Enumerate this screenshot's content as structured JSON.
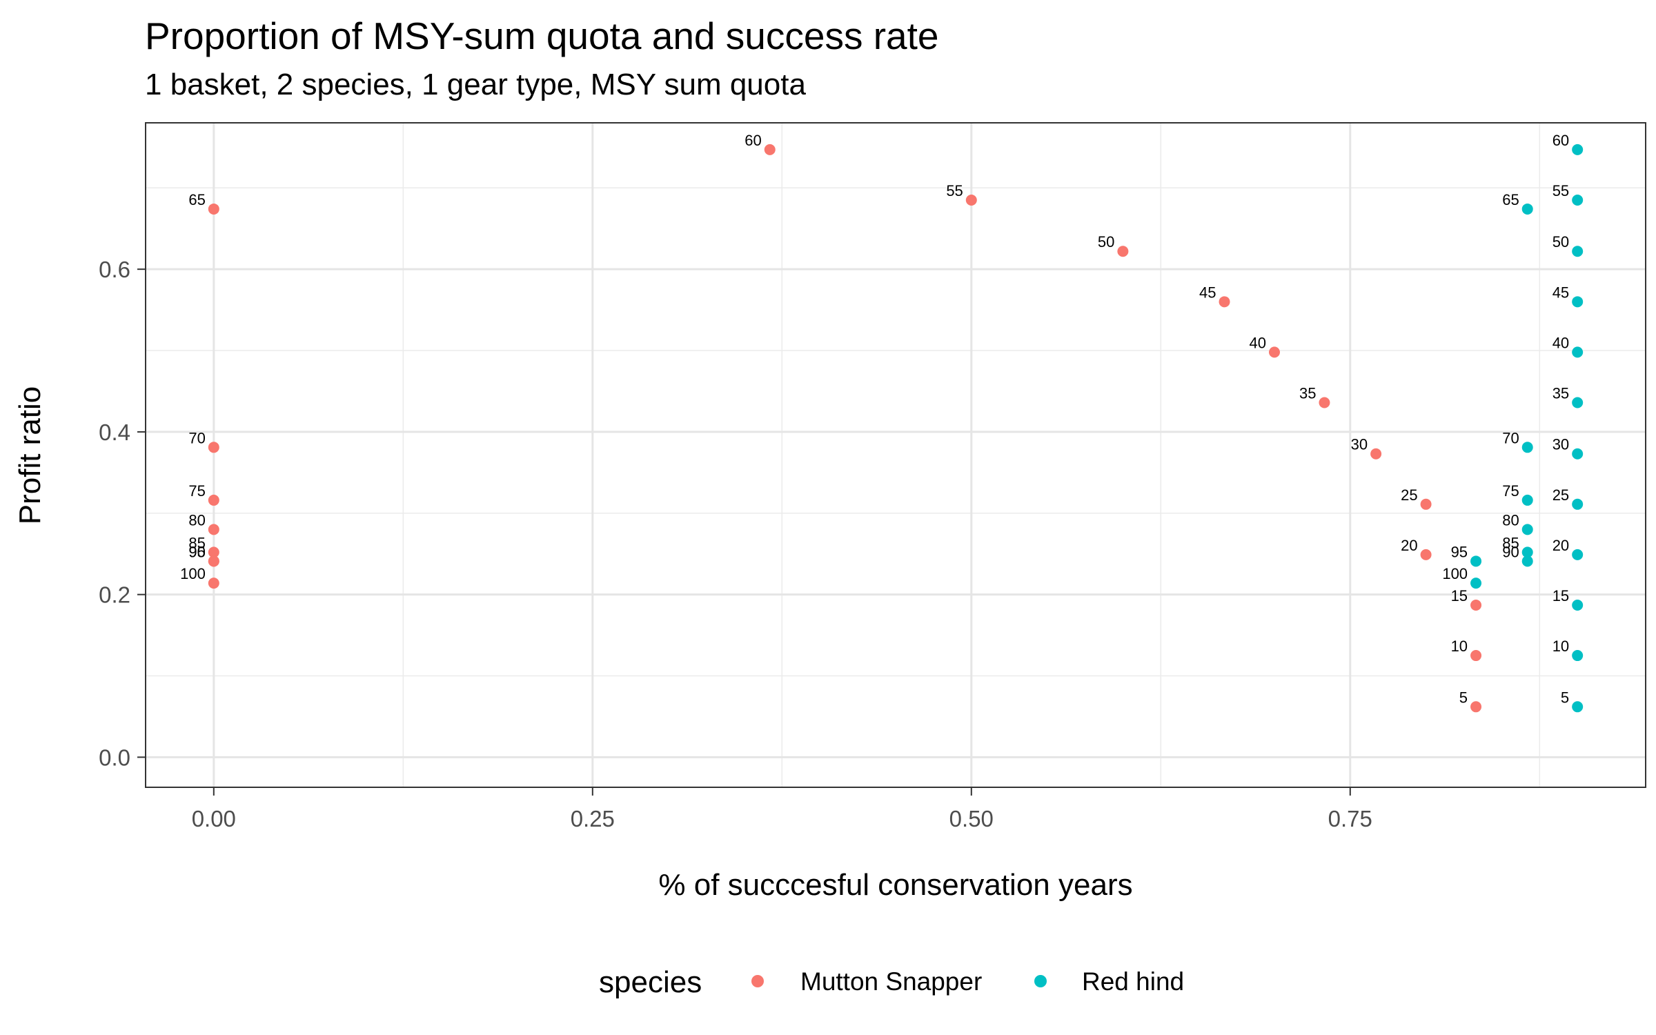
{
  "chart_data": {
    "type": "scatter",
    "title": "Proportion of MSY-sum quota and success rate",
    "subtitle": "1 basket, 2 species, 1 gear type, MSY sum quota",
    "xlabel": "% of succcesful conservation years",
    "ylabel": "Profit ratio",
    "xlim": [
      -0.045,
      0.945
    ],
    "ylim": [
      -0.037,
      0.78
    ],
    "x_ticks": [
      0.0,
      0.25,
      0.5,
      0.75
    ],
    "x_tick_labels": [
      "0.00",
      "0.25",
      "0.50",
      "0.75"
    ],
    "y_ticks": [
      0.0,
      0.2,
      0.4,
      0.6
    ],
    "y_tick_labels": [
      "0.0",
      "0.2",
      "0.4",
      "0.6"
    ],
    "grid": true,
    "legend": {
      "title": "species",
      "position": "bottom"
    },
    "series": [
      {
        "name": "Mutton Snapper",
        "color": "#F8766D",
        "points": [
          {
            "label": "5",
            "x": 0.833,
            "y": 0.062
          },
          {
            "label": "10",
            "x": 0.833,
            "y": 0.125
          },
          {
            "label": "15",
            "x": 0.833,
            "y": 0.187
          },
          {
            "label": "20",
            "x": 0.8,
            "y": 0.249
          },
          {
            "label": "25",
            "x": 0.8,
            "y": 0.311
          },
          {
            "label": "30",
            "x": 0.767,
            "y": 0.373
          },
          {
            "label": "35",
            "x": 0.733,
            "y": 0.436
          },
          {
            "label": "40",
            "x": 0.7,
            "y": 0.498
          },
          {
            "label": "45",
            "x": 0.667,
            "y": 0.56
          },
          {
            "label": "50",
            "x": 0.6,
            "y": 0.622
          },
          {
            "label": "55",
            "x": 0.5,
            "y": 0.685
          },
          {
            "label": "60",
            "x": 0.367,
            "y": 0.747
          },
          {
            "label": "65",
            "x": 0.0,
            "y": 0.674
          },
          {
            "label": "70",
            "x": 0.0,
            "y": 0.381
          },
          {
            "label": "75",
            "x": 0.0,
            "y": 0.316
          },
          {
            "label": "80",
            "x": 0.0,
            "y": 0.28
          },
          {
            "label": "85",
            "x": 0.0,
            "y": 0.252
          },
          {
            "label": "90",
            "x": 0.0,
            "y": 0.241
          },
          {
            "label": "95",
            "x": 0.0,
            "y": 0.241
          },
          {
            "label": "100",
            "x": 0.0,
            "y": 0.214
          }
        ]
      },
      {
        "name": "Red hind",
        "color": "#00BFC4",
        "points": [
          {
            "label": "5",
            "x": 0.9,
            "y": 0.062
          },
          {
            "label": "10",
            "x": 0.9,
            "y": 0.125
          },
          {
            "label": "15",
            "x": 0.9,
            "y": 0.187
          },
          {
            "label": "20",
            "x": 0.9,
            "y": 0.249
          },
          {
            "label": "25",
            "x": 0.9,
            "y": 0.311
          },
          {
            "label": "30",
            "x": 0.9,
            "y": 0.373
          },
          {
            "label": "35",
            "x": 0.9,
            "y": 0.436
          },
          {
            "label": "40",
            "x": 0.9,
            "y": 0.498
          },
          {
            "label": "45",
            "x": 0.9,
            "y": 0.56
          },
          {
            "label": "50",
            "x": 0.9,
            "y": 0.622
          },
          {
            "label": "55",
            "x": 0.9,
            "y": 0.685
          },
          {
            "label": "60",
            "x": 0.9,
            "y": 0.747
          },
          {
            "label": "65",
            "x": 0.867,
            "y": 0.674
          },
          {
            "label": "70",
            "x": 0.867,
            "y": 0.381
          },
          {
            "label": "75",
            "x": 0.867,
            "y": 0.316
          },
          {
            "label": "80",
            "x": 0.867,
            "y": 0.28
          },
          {
            "label": "85",
            "x": 0.867,
            "y": 0.252
          },
          {
            "label": "90",
            "x": 0.867,
            "y": 0.241
          },
          {
            "label": "95",
            "x": 0.833,
            "y": 0.241
          },
          {
            "label": "100",
            "x": 0.833,
            "y": 0.214
          }
        ]
      }
    ]
  }
}
